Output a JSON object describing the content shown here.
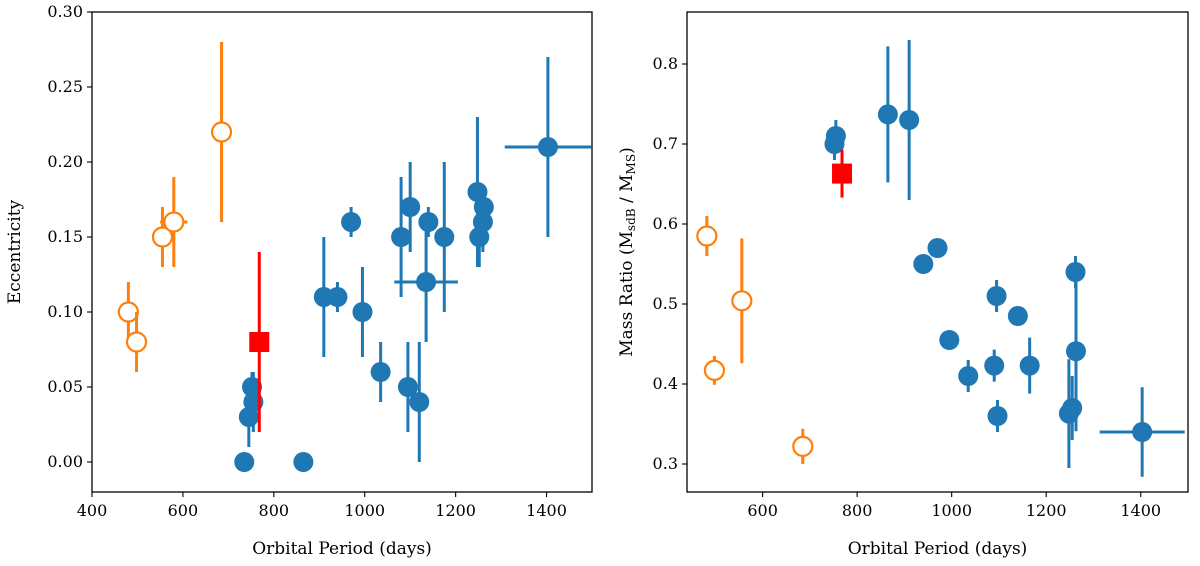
{
  "colors": {
    "blue": "#1f77b4",
    "orange": "#ff7f0e",
    "red": "#ff0000"
  },
  "chart_data": [
    {
      "type": "scatter",
      "title": "",
      "xlabel": "Orbital Period (days)",
      "ylabel": "Eccentricity",
      "xlim": [
        400,
        1500
      ],
      "ylim": [
        -0.02,
        0.3
      ],
      "xticks": [
        400,
        600,
        800,
        1000,
        1200,
        1400
      ],
      "xtick_labels": [
        "400",
        "600",
        "800",
        "1000",
        "1200",
        "1400"
      ],
      "yticks": [
        0.0,
        0.05,
        0.1,
        0.15,
        0.2,
        0.25,
        0.3
      ],
      "ytick_labels": [
        "0.00",
        "0.05",
        "0.10",
        "0.15",
        "0.20",
        "0.25",
        "0.30"
      ],
      "series": [
        {
          "name": "blue-filled",
          "color": "blue",
          "marker": "circle-filled",
          "points": [
            {
              "x": 735,
              "y": 0.0,
              "yerr": 0,
              "xerr": 0
            },
            {
              "x": 745,
              "y": 0.03,
              "yerr": 0.02,
              "xerr": 0
            },
            {
              "x": 752,
              "y": 0.05,
              "yerr": 0.01,
              "xerr": 0
            },
            {
              "x": 755,
              "y": 0.04,
              "yerr": 0.02,
              "xerr": 0
            },
            {
              "x": 865,
              "y": 0.0,
              "yerr": 0,
              "xerr": 0
            },
            {
              "x": 910,
              "y": 0.11,
              "yerr": 0.04,
              "xerr": 0
            },
            {
              "x": 940,
              "y": 0.11,
              "yerr": 0.01,
              "xerr": 0
            },
            {
              "x": 970,
              "y": 0.16,
              "yerr": 0.01,
              "xerr": 0
            },
            {
              "x": 995,
              "y": 0.1,
              "yerr": 0.03,
              "xerr": 0
            },
            {
              "x": 1035,
              "y": 0.06,
              "yerr": 0.02,
              "xerr": 0
            },
            {
              "x": 1080,
              "y": 0.15,
              "yerr": 0.04,
              "xerr": 0
            },
            {
              "x": 1095,
              "y": 0.05,
              "yerr": 0.03,
              "xerr": 0
            },
            {
              "x": 1100,
              "y": 0.17,
              "yerr": 0.03,
              "xerr": 0
            },
            {
              "x": 1120,
              "y": 0.04,
              "yerr": 0.04,
              "xerr": 0
            },
            {
              "x": 1135,
              "y": 0.12,
              "yerr": 0.04,
              "xerr": 70
            },
            {
              "x": 1140,
              "y": 0.16,
              "yerr": 0.01,
              "xerr": 0
            },
            {
              "x": 1175,
              "y": 0.15,
              "yerr": 0.05,
              "xerr": 0
            },
            {
              "x": 1248,
              "y": 0.18,
              "yerr": 0.05,
              "xerr": 15
            },
            {
              "x": 1252,
              "y": 0.15,
              "yerr": 0.02,
              "xerr": 0
            },
            {
              "x": 1260,
              "y": 0.16,
              "yerr": 0.02,
              "xerr": 0
            },
            {
              "x": 1262,
              "y": 0.17,
              "yerr": 0.01,
              "xerr": 0
            },
            {
              "x": 1403,
              "y": 0.21,
              "yerr": 0.06,
              "xerr": 95
            }
          ]
        },
        {
          "name": "orange-open",
          "color": "orange",
          "marker": "circle-open",
          "points": [
            {
              "x": 480,
              "y": 0.1,
              "yerr": 0.02,
              "xerr": 0
            },
            {
              "x": 498,
              "y": 0.08,
              "yerr": 0.02,
              "xerr": 0
            },
            {
              "x": 555,
              "y": 0.15,
              "yerr": 0.02,
              "xerr": 0
            },
            {
              "x": 580,
              "y": 0.16,
              "yerr": 0.03,
              "xerr": 30
            },
            {
              "x": 685,
              "y": 0.22,
              "yerr": 0.06,
              "xerr": 10
            }
          ]
        },
        {
          "name": "red-square",
          "color": "red",
          "marker": "square",
          "points": [
            {
              "x": 768,
              "y": 0.08,
              "yerr": 0.06,
              "xerr": 0
            }
          ]
        }
      ]
    },
    {
      "type": "scatter",
      "title": "",
      "xlabel": "Orbital Period (days)",
      "ylabel": "Mass Ratio (M",
      "ylabel_sub1": "sdB",
      "ylabel_mid": " / M",
      "ylabel_sub2": "MS",
      "ylabel_end": ")",
      "xlim": [
        440,
        1500
      ],
      "ylim": [
        0.265,
        0.865
      ],
      "xticks": [
        600,
        800,
        1000,
        1200,
        1400
      ],
      "xtick_labels": [
        "600",
        "800",
        "1000",
        "1200",
        "1400"
      ],
      "yticks": [
        0.3,
        0.4,
        0.5,
        0.6,
        0.7,
        0.8
      ],
      "ytick_labels": [
        "0.3",
        "0.4",
        "0.5",
        "0.6",
        "0.7",
        "0.8"
      ],
      "series": [
        {
          "name": "blue-filled",
          "color": "blue",
          "marker": "circle-filled",
          "points": [
            {
              "x": 752,
              "y": 0.7,
              "yerr": 0.02,
              "xerr": 0
            },
            {
              "x": 755,
              "y": 0.71,
              "yerr": 0.02,
              "xerr": 0
            },
            {
              "x": 865,
              "y": 0.737,
              "yerr": 0.085,
              "xerr": 0
            },
            {
              "x": 910,
              "y": 0.73,
              "yerr": 0.1,
              "xerr": 0
            },
            {
              "x": 940,
              "y": 0.55,
              "yerr": 0,
              "xerr": 0
            },
            {
              "x": 970,
              "y": 0.57,
              "yerr": 0,
              "xerr": 0
            },
            {
              "x": 995,
              "y": 0.455,
              "yerr": 0,
              "xerr": 0
            },
            {
              "x": 1035,
              "y": 0.41,
              "yerr": 0.02,
              "xerr": 0
            },
            {
              "x": 1090,
              "y": 0.423,
              "yerr": 0.02,
              "xerr": 0
            },
            {
              "x": 1095,
              "y": 0.51,
              "yerr": 0.02,
              "xerr": 0
            },
            {
              "x": 1097,
              "y": 0.36,
              "yerr": 0.02,
              "xerr": 0
            },
            {
              "x": 1140,
              "y": 0.485,
              "yerr": 0,
              "xerr": 0
            },
            {
              "x": 1165,
              "y": 0.423,
              "yerr": 0.035,
              "xerr": 0
            },
            {
              "x": 1248,
              "y": 0.363,
              "yerr": 0.068,
              "xerr": 0
            },
            {
              "x": 1255,
              "y": 0.37,
              "yerr": 0.04,
              "xerr": 0
            },
            {
              "x": 1262,
              "y": 0.54,
              "yerr": 0.02,
              "xerr": 0
            },
            {
              "x": 1263,
              "y": 0.441,
              "yerr": 0.1,
              "xerr": 0
            },
            {
              "x": 1403,
              "y": 0.34,
              "yerr": 0.056,
              "xerr": 90
            }
          ]
        },
        {
          "name": "orange-open",
          "color": "orange",
          "marker": "circle-open",
          "points": [
            {
              "x": 482,
              "y": 0.585,
              "yerr": 0.025,
              "xerr": 0
            },
            {
              "x": 498,
              "y": 0.417,
              "yerr": 0.018,
              "xerr": 0
            },
            {
              "x": 556,
              "y": 0.504,
              "yerr": 0.078,
              "xerr": 0
            },
            {
              "x": 685,
              "y": 0.322,
              "yerr": 0.022,
              "xerr": 10
            }
          ]
        },
        {
          "name": "red-square",
          "color": "red",
          "marker": "square",
          "points": [
            {
              "x": 768,
              "y": 0.663,
              "yerr": 0.03,
              "xerr": 0
            }
          ]
        }
      ]
    }
  ]
}
